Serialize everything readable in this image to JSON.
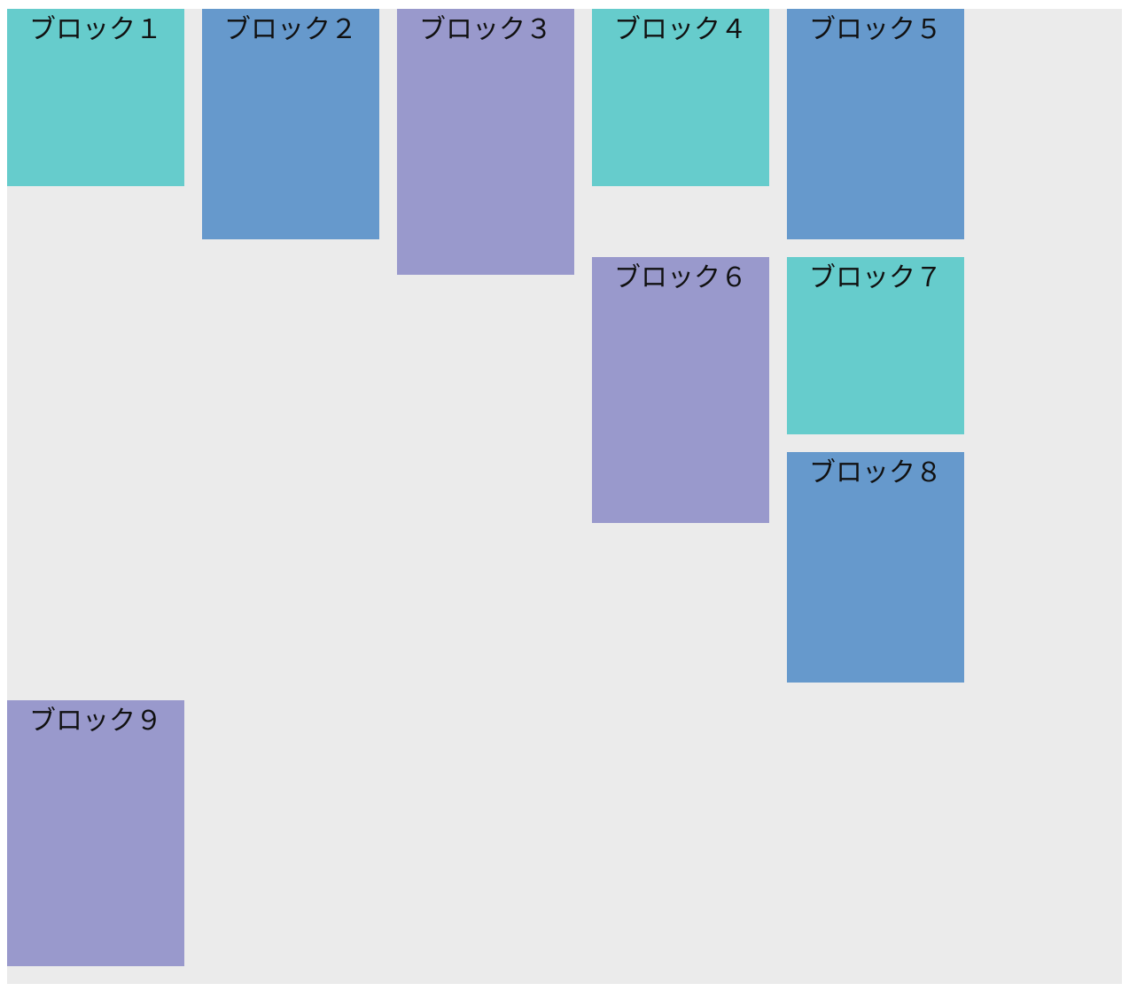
{
  "blocks": [
    {
      "label": "ブロック１",
      "color": "#66cccc"
    },
    {
      "label": "ブロック２",
      "color": "#6699cc"
    },
    {
      "label": "ブロック３",
      "color": "#9999cc"
    },
    {
      "label": "ブロック４",
      "color": "#66cccc"
    },
    {
      "label": "ブロック５",
      "color": "#6699cc"
    },
    {
      "label": "ブロック６",
      "color": "#9999cc"
    },
    {
      "label": "ブロック７",
      "color": "#66cccc"
    },
    {
      "label": "ブロック８",
      "color": "#6699cc"
    },
    {
      "label": "ブロック９",
      "color": "#9999cc"
    }
  ],
  "container": {
    "background": "#ebebeb"
  }
}
